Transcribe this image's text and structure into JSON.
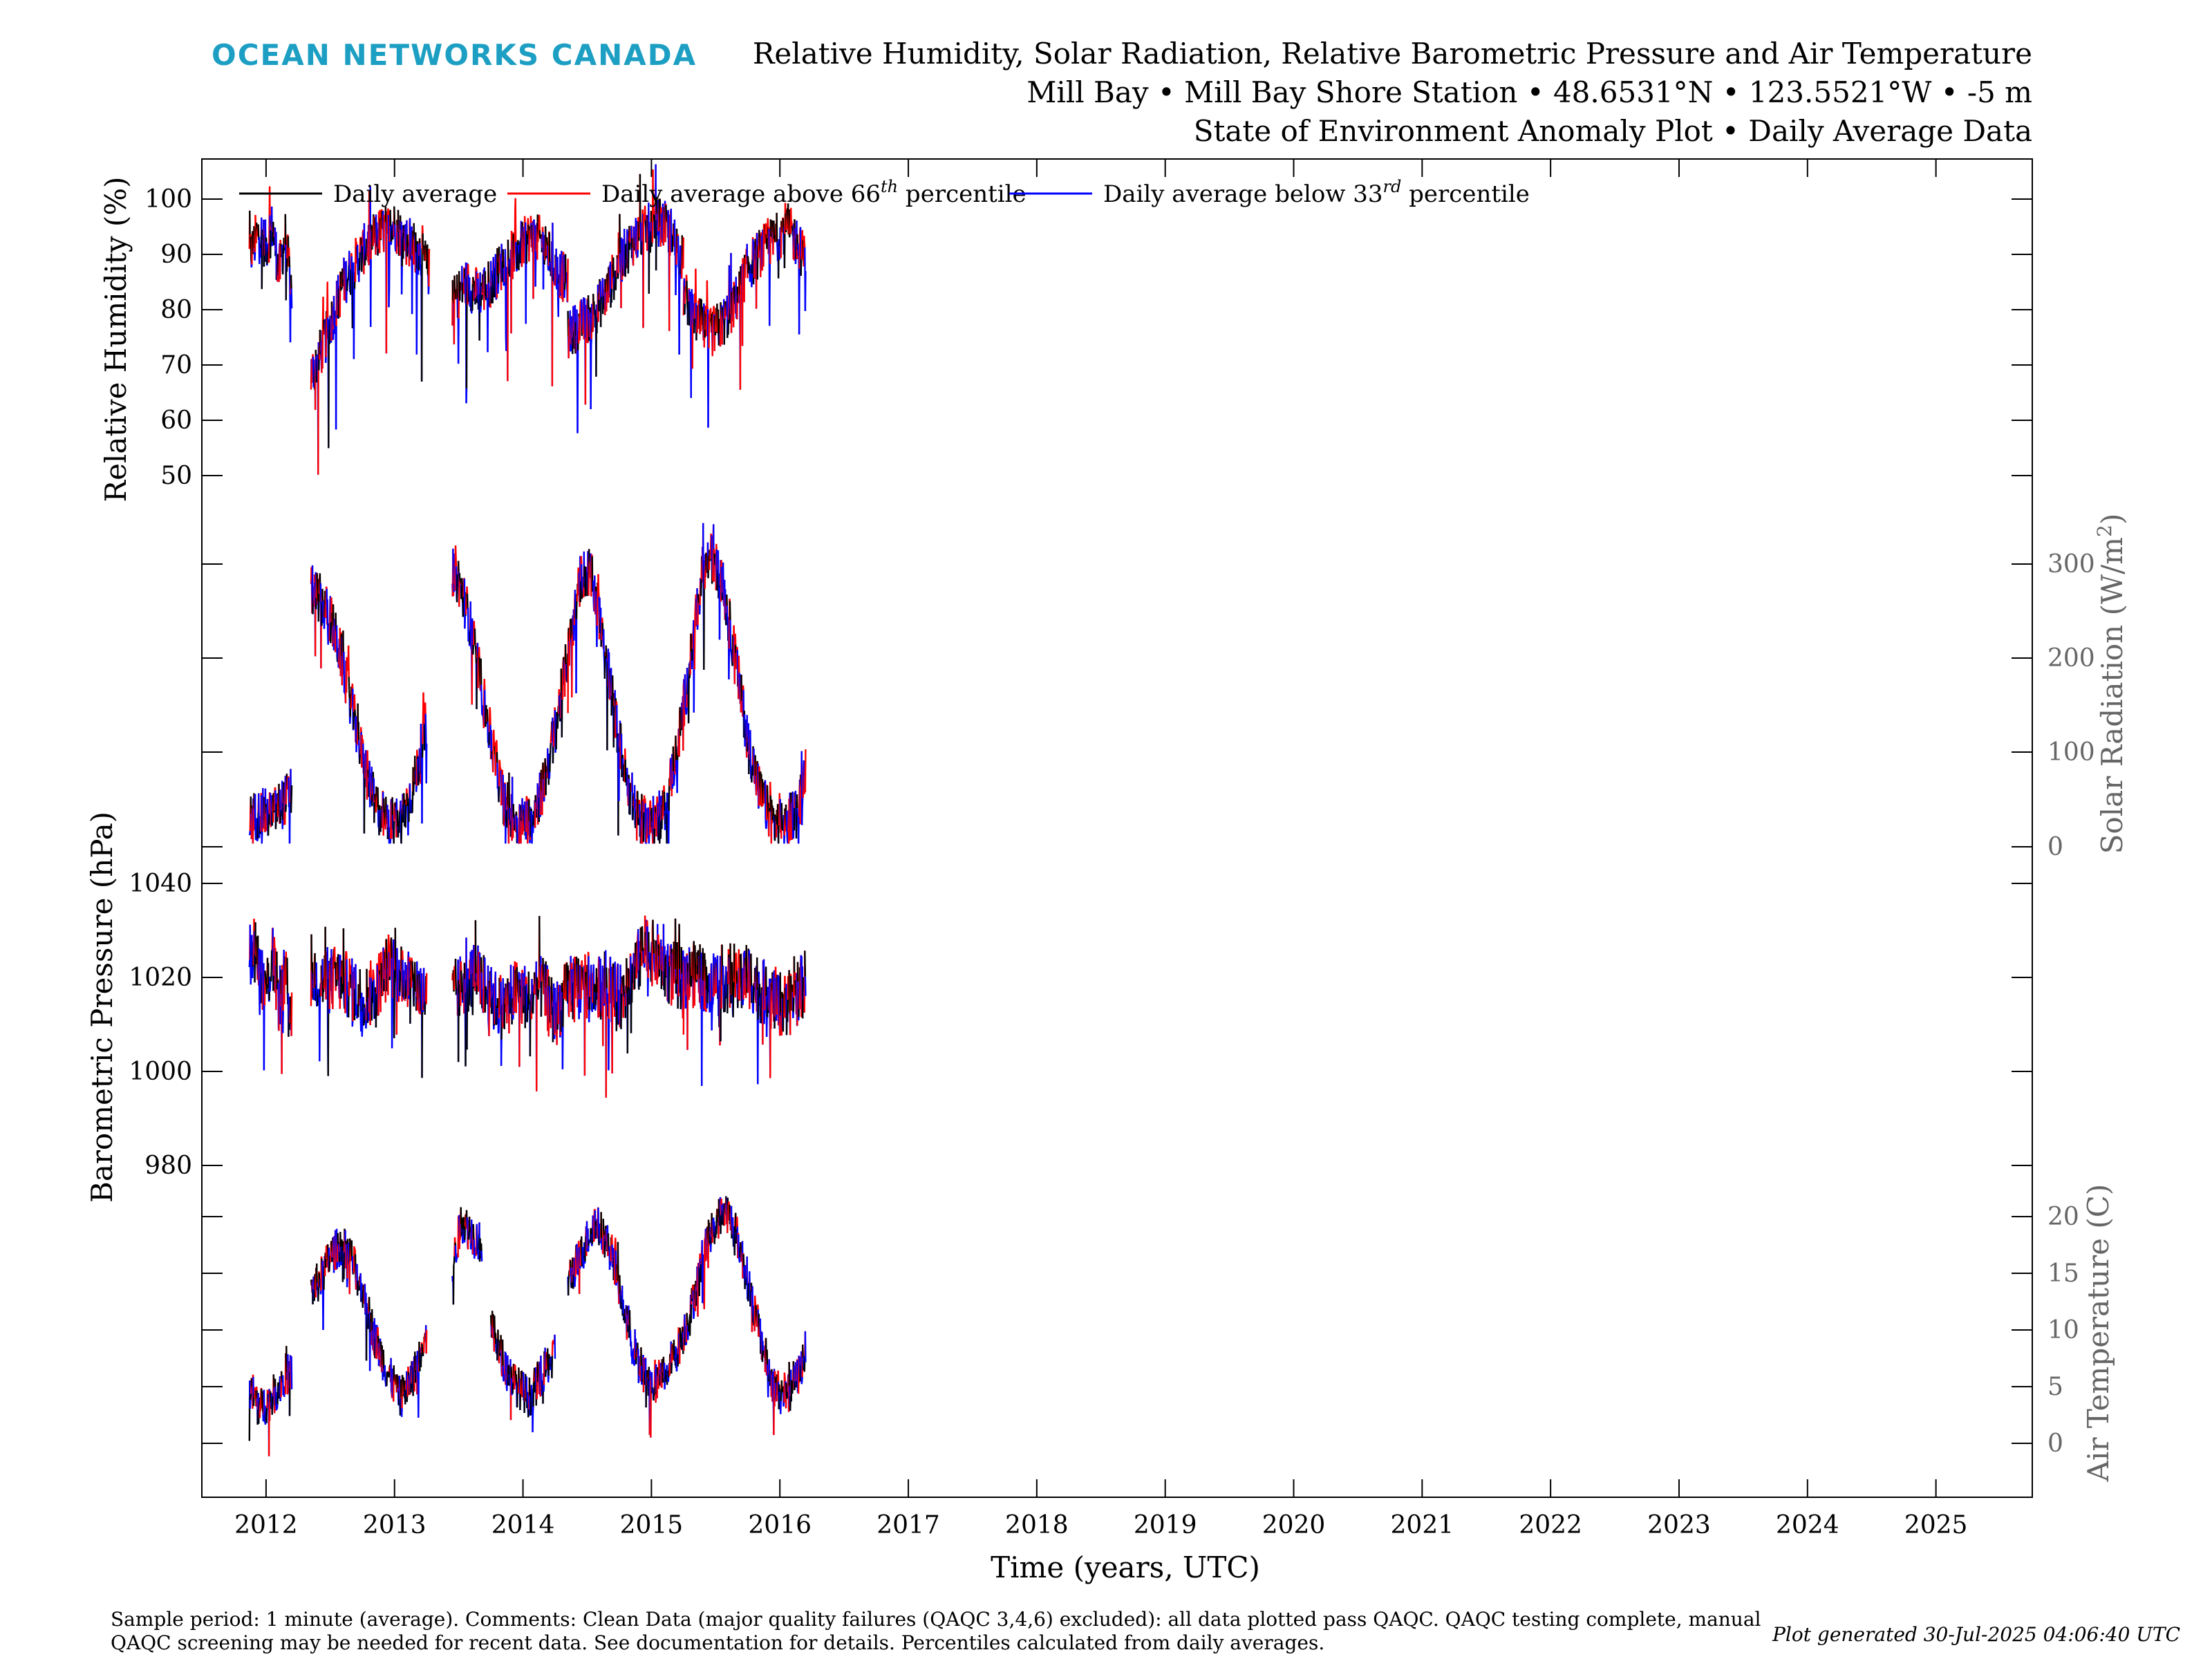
{
  "brand": "OCEAN NETWORKS CANADA",
  "colors": {
    "brand": "#1d9fc3",
    "daily": "#000000",
    "above": "#ff0000",
    "below": "#0000ff",
    "axis_grey": "#666666"
  },
  "title_lines": [
    "Relative Humidity, Solar Radiation, Relative Barometric Pressure and Air Temperature",
    "Mill Bay • Mill Bay Shore Station • 48.6531°N • 123.5521°W • -5 m",
    "State of Environment Anomaly Plot • Daily Average Data"
  ],
  "legend": {
    "daily": "Daily average",
    "above_prefix": "Daily average above 66",
    "above_sup": "th",
    "above_suffix": " percentile",
    "below_prefix": "Daily average below 33",
    "below_sup": "rd",
    "below_suffix": " percentile"
  },
  "xlabel": "Time (years, UTC)",
  "footer": {
    "line1": "Sample period: 1 minute (average). Comments: Clean Data (major quality failures (QAQC 3,4,6) excluded): all data plotted pass QAQC. QAQC testing complete, manual",
    "line2": "QAQC screening may be needed for recent data. See documentation for details. Percentiles calculated from daily averages.",
    "generated": "Plot generated 30-Jul-2025 04:06:40 UTC"
  },
  "chart_data": {
    "type": "line",
    "x_range": [
      2011.5,
      2025.75
    ],
    "x_ticks": [
      "2012",
      "2013",
      "2014",
      "2015",
      "2016",
      "2017",
      "2018",
      "2019",
      "2020",
      "2021",
      "2022",
      "2023",
      "2024",
      "2025"
    ],
    "legend_position": "top-left",
    "series_keys": [
      "Daily average",
      "Daily average above 66th percentile",
      "Daily average below 33rd percentile"
    ],
    "panels": [
      {
        "id": "rh",
        "ylabel": "Relative Humidity (%)",
        "axis_side": "left",
        "ylim": [
          36,
          106
        ],
        "ticks": [
          "50",
          "60",
          "70",
          "80",
          "90",
          "100"
        ],
        "segments": [
          {
            "x": [
              2011.87,
              2011.95,
              2012.0,
              2012.05,
              2012.1,
              2012.15,
              2012.2
            ],
            "y": [
              87,
              92,
              89,
              93,
              84,
              91,
              80
            ]
          },
          {
            "x": [
              2012.35,
              2012.45,
              2012.55,
              2012.6,
              2012.7,
              2012.8,
              2012.9,
              2013.0,
              2013.1,
              2013.2,
              2013.27
            ],
            "y": [
              64,
              70,
              78,
              82,
              86,
              90,
              92,
              93,
              90,
              88,
              84
            ]
          },
          {
            "x": [
              2013.45,
              2013.55,
              2013.65,
              2013.75,
              2013.85,
              2013.95,
              2014.05,
              2014.15,
              2014.25,
              2014.35
            ],
            "y": [
              78,
              82,
              80,
              82,
              86,
              88,
              91,
              90,
              85,
              82
            ]
          },
          {
            "x": [
              2014.35,
              2014.45,
              2014.55,
              2014.65,
              2014.75,
              2014.85,
              2014.95,
              2015.05,
              2015.15,
              2015.25
            ],
            "y": [
              72,
              74,
              76,
              80,
              86,
              90,
              92,
              94,
              92,
              86
            ]
          },
          {
            "x": [
              2015.25,
              2015.35,
              2015.45,
              2015.55,
              2015.65,
              2015.75,
              2015.85,
              2015.95,
              2016.05,
              2016.15,
              2016.2
            ],
            "y": [
              80,
              75,
              72,
              74,
              78,
              85,
              88,
              90,
              93,
              89,
              86
            ]
          }
        ]
      },
      {
        "id": "solar",
        "ylabel": "Solar Radiation (W/m²)",
        "ylabel_main": "Solar Radiation (W/m",
        "ylabel_sup": "2",
        "ylabel_end": ")",
        "axis_side": "right",
        "ylim": [
          -5,
          345
        ],
        "ticks": [
          "0",
          "100",
          "200",
          "300"
        ],
        "segments": [
          {
            "x": [
              2011.87,
              2011.95,
              2012.05,
              2012.15,
              2012.2
            ],
            "y": [
              25,
              30,
              30,
              45,
              55
            ]
          },
          {
            "x": [
              2012.35,
              2012.42,
              2012.5,
              2012.58,
              2012.66,
              2012.75,
              2012.85,
              2012.95,
              2013.05,
              2013.15,
              2013.25
            ],
            "y": [
              270,
              260,
              240,
              200,
              150,
              90,
              40,
              20,
              25,
              60,
              130
            ]
          },
          {
            "x": [
              2013.45,
              2013.5,
              2013.58,
              2013.66,
              2013.75,
              2013.85,
              2013.95,
              2014.05,
              2014.15,
              2014.25,
              2014.35
            ],
            "y": [
              290,
              280,
              240,
              180,
              110,
              45,
              20,
              25,
              55,
              120,
              200
            ]
          },
          {
            "x": [
              2014.35,
              2014.45,
              2014.52,
              2014.6,
              2014.7,
              2014.8,
              2014.9,
              2015.0,
              2015.1,
              2015.2,
              2015.3
            ],
            "y": [
              200,
              285,
              290,
              240,
              150,
              70,
              25,
              20,
              35,
              100,
              190
            ]
          },
          {
            "x": [
              2015.3,
              2015.4,
              2015.47,
              2015.55,
              2015.65,
              2015.75,
              2015.85,
              2015.95,
              2016.05,
              2016.15,
              2016.2
            ],
            "y": [
              190,
              290,
              305,
              280,
              200,
              110,
              50,
              20,
              20,
              40,
              80
            ]
          }
        ]
      },
      {
        "id": "pressure",
        "ylabel": "Barometric Pressure (hPa)",
        "axis_side": "left",
        "ylim": [
          970,
          1046
        ],
        "ticks": [
          "980",
          "1000",
          "1020",
          "1040"
        ],
        "segments": [
          {
            "x": [
              2011.87,
              2011.95,
              2012.0,
              2012.05,
              2012.1,
              2012.15,
              2012.2
            ],
            "y": [
              1025,
              1018,
              1012,
              1020,
              1010,
              1015,
              1005
            ]
          },
          {
            "x": [
              2012.35,
              2012.45,
              2012.55,
              2012.65,
              2012.75,
              2012.85,
              2012.95,
              2013.05,
              2013.15,
              2013.25
            ],
            "y": [
              1016,
              1014,
              1015,
              1013,
              1010,
              1012,
              1018,
              1016,
              1014,
              1010
            ]
          },
          {
            "x": [
              2013.45,
              2013.55,
              2013.65,
              2013.75,
              2013.85,
              2013.95,
              2014.05,
              2014.15,
              2014.25,
              2014.35
            ],
            "y": [
              1011,
              1014,
              1016,
              1010,
              1008,
              1012,
              1010,
              1013,
              1006,
              1012
            ]
          },
          {
            "x": [
              2014.35,
              2014.45,
              2014.55,
              2014.65,
              2014.75,
              2014.85,
              2014.95,
              2015.05,
              2015.15,
              2015.25
            ],
            "y": [
              1012,
              1013,
              1012,
              1014,
              1010,
              1016,
              1022,
              1020,
              1016,
              1015
            ]
          },
          {
            "x": [
              2015.25,
              2015.35,
              2015.45,
              2015.55,
              2015.65,
              2015.75,
              2015.85,
              2015.95,
              2016.05,
              2016.15,
              2016.2
            ],
            "y": [
              1015,
              1016,
              1014,
              1015,
              1013,
              1016,
              1012,
              1010,
              1008,
              1012,
              1014
            ]
          }
        ]
      },
      {
        "id": "temp",
        "ylabel": "Air Temperature (C)",
        "axis_side": "right",
        "ylim": [
          -4.5,
          23.5
        ],
        "ticks": [
          "0",
          "5",
          "10",
          "15",
          "20"
        ],
        "segments": [
          {
            "x": [
              2011.87,
              2011.95,
              2012.05,
              2012.15,
              2012.2
            ],
            "y": [
              5,
              3,
              4,
              6,
              6
            ]
          },
          {
            "x": [
              2012.35,
              2012.42,
              2012.5,
              2012.58,
              2012.66,
              2012.75,
              2012.85,
              2012.95,
              2013.05,
              2013.15,
              2013.25
            ],
            "y": [
              13,
              14,
              16,
              17,
              16,
              13,
              9,
              6,
              4,
              6,
              9
            ]
          },
          {
            "x": [
              2013.45,
              2013.52,
              2013.6,
              2013.68
            ],
            "y": [
              15,
              19,
              18,
              17
            ]
          },
          {
            "x": [
              2013.75,
              2013.85,
              2013.95,
              2014.05,
              2014.15,
              2014.25
            ],
            "y": [
              10,
              7,
              5,
              4,
              6,
              8
            ]
          },
          {
            "x": [
              2014.35,
              2014.45,
              2014.55,
              2014.62,
              2014.7,
              2014.8,
              2014.9,
              2015.0,
              2015.1,
              2015.2,
              2015.3
            ],
            "y": [
              14,
              16,
              19,
              18,
              16,
              11,
              7,
              5,
              6,
              8,
              11
            ]
          },
          {
            "x": [
              2015.3,
              2015.4,
              2015.5,
              2015.58,
              2015.66,
              2015.75,
              2015.85,
              2015.95,
              2016.05,
              2016.15,
              2016.2
            ],
            "y": [
              11,
              16,
              19,
              20,
              18,
              14,
              9,
              5,
              4,
              6,
              8
            ]
          }
        ]
      }
    ]
  }
}
